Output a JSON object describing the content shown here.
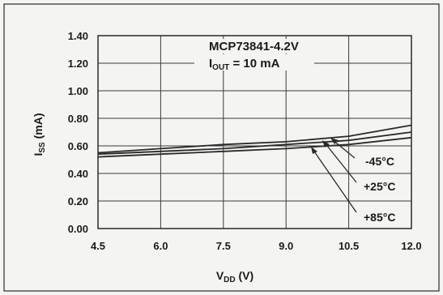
{
  "chart_data": {
    "type": "line",
    "title": "MCP73841-4.2V",
    "subtitle": {
      "main": "I",
      "sub": "OUT",
      "rest": " = 10 mA"
    },
    "xlabel": {
      "main": "V",
      "sub": "DD",
      "rest": " (V)"
    },
    "ylabel": {
      "main": "I",
      "sub": "SS",
      "rest": " (mA)"
    },
    "xlim": [
      4.5,
      12.0
    ],
    "ylim": [
      0.0,
      1.4
    ],
    "x_ticks": [
      4.5,
      6.0,
      7.5,
      9.0,
      10.5,
      12.0
    ],
    "x_tick_labels": [
      "4.5",
      "6.0",
      "7.5",
      "9.0",
      "10.5",
      "12.0"
    ],
    "y_ticks": [
      0.0,
      0.2,
      0.4,
      0.6,
      0.8,
      1.0,
      1.2,
      1.4
    ],
    "y_tick_labels": [
      "0.00",
      "0.20",
      "0.40",
      "0.60",
      "0.80",
      "1.00",
      "1.20",
      "1.40"
    ],
    "grid": true,
    "x": [
      4.5,
      6.0,
      7.5,
      9.0,
      10.5,
      12.0
    ],
    "series": [
      {
        "name": "-45°C",
        "values": [
          0.55,
          0.58,
          0.61,
          0.63,
          0.67,
          0.75
        ]
      },
      {
        "name": "+25°C",
        "values": [
          0.54,
          0.56,
          0.58,
          0.61,
          0.64,
          0.7
        ]
      },
      {
        "name": "+85°C",
        "values": [
          0.52,
          0.54,
          0.56,
          0.58,
          0.61,
          0.66
        ]
      }
    ]
  },
  "colors": {
    "line": "#2a2a2a",
    "grid": "#3a3a3a",
    "text": "#1a1a1a",
    "background": "#f4f4f2"
  }
}
